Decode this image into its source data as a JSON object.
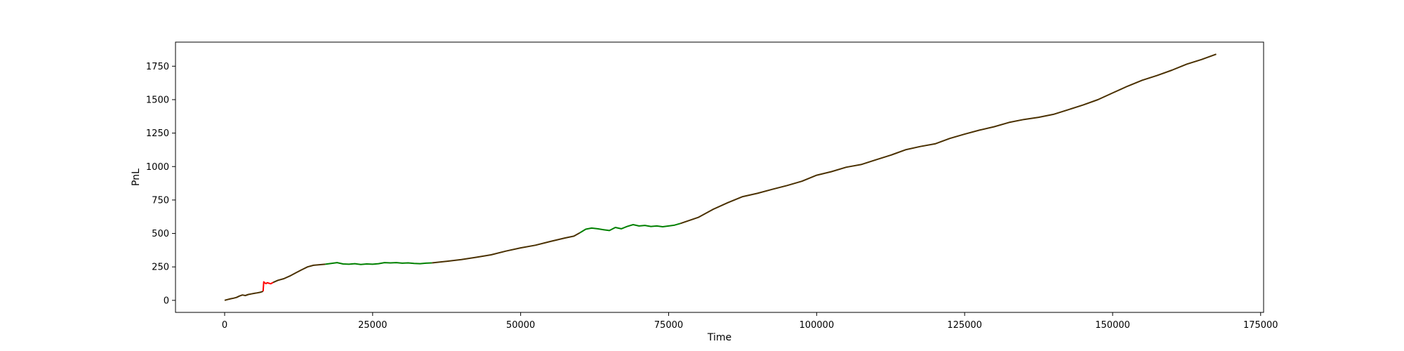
{
  "chart_data": {
    "type": "line",
    "title": "",
    "xlabel": "Time",
    "ylabel": "PnL",
    "xlim": [
      -8300,
      175500
    ],
    "ylim": [
      -90,
      1930
    ],
    "xticks": [
      0,
      25000,
      50000,
      75000,
      100000,
      125000,
      150000,
      175000
    ],
    "yticks": [
      0,
      250,
      500,
      750,
      1000,
      1250,
      1500,
      1750
    ],
    "grid": false,
    "legend": "none",
    "colors": {
      "dark": "#4a3000",
      "green": "#008000",
      "red": "#ff0000",
      "axis": "#000000"
    },
    "series": [
      {
        "color": "dark",
        "x": [
          0,
          500,
          1000,
          1500,
          2000,
          2500,
          3000,
          3500,
          4000,
          4500,
          5000,
          5500,
          6000,
          6500
        ],
        "y": [
          0,
          6,
          12,
          16,
          22,
          32,
          40,
          36,
          44,
          48,
          52,
          56,
          60,
          68
        ]
      },
      {
        "color": "red",
        "x": [
          6500,
          6600,
          6800,
          7000,
          7200,
          7500,
          7800,
          8000,
          8200
        ],
        "y": [
          68,
          138,
          130,
          125,
          132,
          128,
          124,
          130,
          134
        ]
      },
      {
        "color": "dark",
        "x": [
          8200,
          9000,
          10000,
          11000,
          12000,
          13000,
          14000,
          15000,
          16000,
          17000
        ],
        "y": [
          134,
          150,
          162,
          182,
          205,
          228,
          250,
          262,
          266,
          270
        ]
      },
      {
        "color": "green",
        "x": [
          17000,
          18000,
          19000,
          20000,
          21000,
          22000,
          23000,
          24000,
          25000,
          26000,
          27000,
          28000,
          29000,
          30000,
          31000,
          32000,
          33000,
          34000,
          35000
        ],
        "y": [
          270,
          276,
          282,
          272,
          270,
          274,
          268,
          272,
          270,
          274,
          282,
          280,
          282,
          278,
          280,
          276,
          274,
          278,
          280
        ]
      },
      {
        "color": "dark",
        "x": [
          35000,
          37500,
          40000,
          42500,
          45000,
          47500,
          50000,
          52500,
          55000,
          57500,
          59000,
          60000
        ],
        "y": [
          280,
          292,
          305,
          322,
          340,
          368,
          392,
          412,
          440,
          466,
          480,
          505
        ]
      },
      {
        "color": "green",
        "x": [
          60000,
          61000,
          62000,
          63000,
          64000,
          65000,
          66000,
          67000,
          68000,
          69000,
          70000,
          71000,
          72000,
          73000,
          74000,
          75000,
          76000,
          77000
        ],
        "y": [
          505,
          532,
          540,
          535,
          528,
          522,
          545,
          535,
          552,
          566,
          556,
          560,
          552,
          556,
          550,
          556,
          562,
          575
        ]
      },
      {
        "color": "dark",
        "x": [
          77000,
          80000,
          82500,
          85000,
          87500,
          90000,
          92500,
          95000,
          97500,
          100000,
          102500,
          105000,
          107500,
          110000,
          112500,
          115000,
          117500,
          120000,
          122500,
          125000,
          127500,
          130000,
          132500,
          135000,
          137500,
          140000,
          142500,
          145000,
          147500,
          150000,
          152500,
          155000,
          157500,
          160000,
          162500,
          165000,
          167500
        ],
        "y": [
          575,
          620,
          680,
          730,
          775,
          800,
          830,
          858,
          890,
          935,
          962,
          995,
          1015,
          1050,
          1085,
          1125,
          1150,
          1170,
          1210,
          1242,
          1272,
          1298,
          1330,
          1352,
          1368,
          1390,
          1425,
          1460,
          1500,
          1550,
          1600,
          1645,
          1680,
          1720,
          1765,
          1800,
          1840
        ]
      }
    ]
  }
}
